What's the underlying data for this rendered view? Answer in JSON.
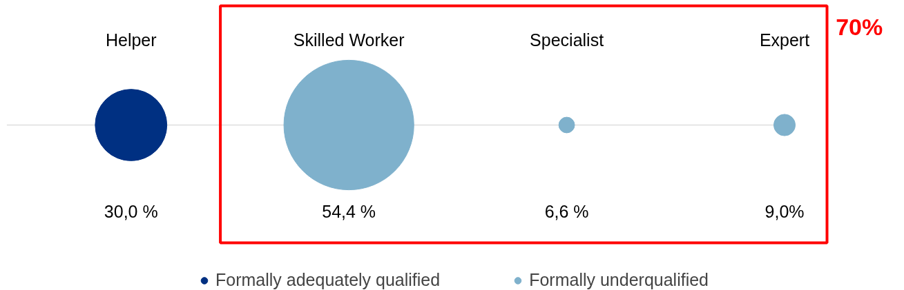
{
  "chart_data": {
    "type": "other",
    "categories": [
      "Helper",
      "Skilled Worker",
      "Specialist",
      "Expert"
    ],
    "series": [
      {
        "name": "Formally adequately qualified",
        "color": "#003082",
        "values": [
          30.0,
          null,
          null,
          null
        ],
        "value_labels": [
          "30,0 %",
          null,
          null,
          null
        ]
      },
      {
        "name": "Formally underqualified",
        "color": "#7fb1cc",
        "values": [
          null,
          54.4,
          6.6,
          9.0
        ],
        "value_labels": [
          null,
          "54,4 %",
          "6,6 %",
          "9,0%"
        ]
      }
    ],
    "annotations": [
      "70%"
    ],
    "legend": "bottom"
  }
}
